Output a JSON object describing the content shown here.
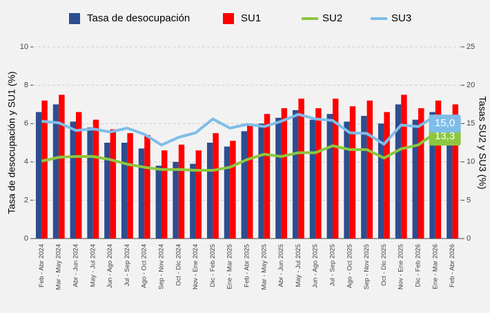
{
  "chart_data": {
    "type": "bar-line",
    "categories": [
      "Feb - Abr 2024",
      "Mar - May 2024",
      "Abr - Jun 2024",
      "May - Jul 2024",
      "Jun - Ago 2024",
      "Jul - Sep 2024",
      "Ago - Oct 2024",
      "Sep - Nov 2024",
      "Oct - Dic 2024",
      "Nov - Ene 2024",
      "Dic - Feb 2025",
      "Ene - Mar 2025",
      "Feb - Abr 2025",
      "Mar - May 2025",
      "Abr - Jun 2025",
      "May - Jul 2025",
      "Jun - Ago 2025",
      "Jul - Sep 2025",
      "Ago - Oct 2025",
      "Sep - Nov 2025",
      "Oct - Dic 2025",
      "Nov - Ene 2025",
      "Dic - Feb 2026",
      "Ene - Mar 2026",
      "Feb - Abr 2026"
    ],
    "ylabel": "Tasa de desocupación y SU1 (%)",
    "y2label": "Tasas SU2 y SU3 (%)",
    "ylim": [
      0,
      10
    ],
    "yticks": [
      0,
      2,
      4,
      6,
      8,
      10
    ],
    "y2lim": [
      0,
      25
    ],
    "y2ticks": [
      0,
      5,
      10,
      15,
      20,
      25
    ],
    "grid": true,
    "series": [
      {
        "name": "Tasa de desocupación",
        "kind": "bar",
        "color": "#2e4d8f",
        "values": [
          6.6,
          7.0,
          6.1,
          5.8,
          5.0,
          5.0,
          4.7,
          3.8,
          4.0,
          3.9,
          5.0,
          4.8,
          5.6,
          6.0,
          6.3,
          6.7,
          6.2,
          6.5,
          6.1,
          6.4,
          6.0,
          7.0,
          6.2,
          6.6,
          6.2
        ]
      },
      {
        "name": "SU1",
        "kind": "bar",
        "color": "#ff0000",
        "values": [
          7.2,
          7.5,
          6.6,
          6.2,
          5.7,
          5.5,
          5.4,
          4.6,
          4.9,
          4.6,
          5.5,
          5.1,
          5.9,
          6.5,
          6.8,
          7.3,
          6.8,
          7.3,
          6.9,
          7.2,
          6.6,
          7.5,
          6.8,
          7.2,
          7.0
        ]
      },
      {
        "name": "SU2",
        "kind": "line",
        "axis": "y2",
        "color": "#8dc63f",
        "values": [
          10.1,
          10.6,
          10.7,
          10.7,
          10.3,
          9.7,
          9.3,
          9.0,
          9.0,
          8.9,
          8.9,
          9.3,
          10.3,
          11.0,
          10.7,
          11.2,
          11.2,
          12.1,
          11.6,
          11.6,
          10.5,
          11.7,
          12.2,
          13.8,
          13.3
        ],
        "value_labels": [
          null,
          null,
          null,
          null,
          null,
          null,
          null,
          null,
          null,
          null,
          null,
          null,
          null,
          null,
          null,
          null,
          null,
          null,
          null,
          null,
          null,
          null,
          null,
          null,
          "13,3"
        ]
      },
      {
        "name": "SU3",
        "kind": "line",
        "axis": "y2",
        "color": "#7fbde8",
        "values": [
          15.3,
          15.1,
          14.1,
          14.3,
          13.9,
          14.4,
          13.6,
          12.2,
          13.2,
          13.8,
          15.6,
          14.4,
          14.9,
          14.6,
          15.3,
          16.2,
          15.6,
          15.4,
          13.8,
          13.7,
          12.3,
          14.8,
          14.6,
          16.0,
          15.0
        ],
        "value_labels": [
          null,
          null,
          null,
          null,
          null,
          null,
          null,
          null,
          null,
          null,
          null,
          null,
          null,
          null,
          null,
          null,
          null,
          null,
          null,
          null,
          null,
          null,
          null,
          null,
          "15,0"
        ]
      }
    ]
  }
}
